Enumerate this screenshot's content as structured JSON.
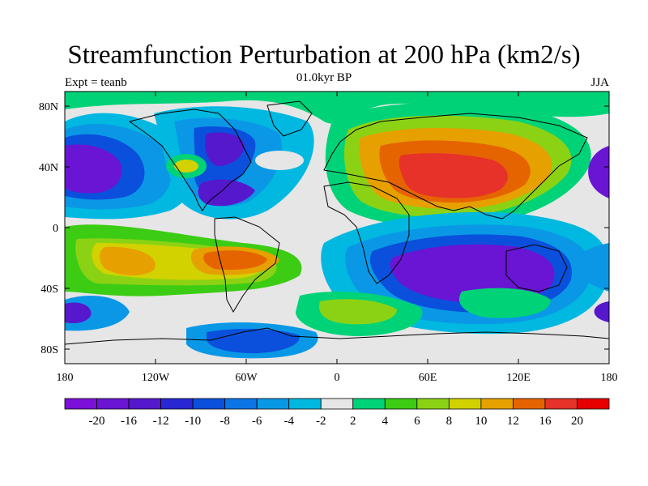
{
  "title": "Streamfunction Perturbation at 200 hPa (km2/s)",
  "experiment_label": "Expt = teanb",
  "time_label": "01.0kyr BP",
  "season_label": "JJA",
  "axes": {
    "lat_ticks": [
      "80N",
      "40N",
      "0",
      "40S",
      "80S"
    ],
    "lon_ticks": [
      "180",
      "120W",
      "60W",
      "0",
      "60E",
      "120E",
      "180"
    ]
  },
  "colorbar": {
    "labels": [
      "-20",
      "-16",
      "-12",
      "-10",
      "-8",
      "-6",
      "-4",
      "-2",
      "2",
      "4",
      "6",
      "8",
      "10",
      "12",
      "16",
      "20"
    ],
    "colors": [
      "#7d10d8",
      "#6a14d4",
      "#5518cc",
      "#2828d2",
      "#0a50dc",
      "#0c76e6",
      "#0a98e6",
      "#00b8e0",
      "#e6e6e6",
      "#00d278",
      "#3ccc14",
      "#8cd214",
      "#d2d200",
      "#e6a000",
      "#e66400",
      "#e63228",
      "#e60000"
    ]
  }
}
